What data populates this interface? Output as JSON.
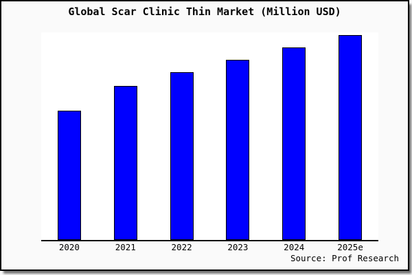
{
  "page": {
    "title": "Global Scar Clinic Thin Market (Million USD)",
    "source": "Source: Prof Research"
  },
  "colors": {
    "bar_fill": "#0000ff",
    "bar_border": "#000000",
    "page_bg": "#fafafa",
    "plot_bg": "#ffffff",
    "frame_border": "#000000",
    "frame_shadow": "#8d8d8d",
    "text": "#000000"
  },
  "chart_data": {
    "type": "bar",
    "title": "Global Scar Clinic Thin Market (Million USD)",
    "categories": [
      "2020",
      "2021",
      "2022",
      "2023",
      "2024",
      "2025e"
    ],
    "values": [
      63,
      75,
      82,
      88,
      94,
      100
    ],
    "value_scale": "relative bar heights, tallest bar = 100; no y-axis ticks or gridlines shown in chart",
    "xlabel": "",
    "ylabel": "",
    "ylim": [
      0,
      100
    ],
    "grid": false,
    "legend": false,
    "source_note": "Source: Prof Research"
  }
}
